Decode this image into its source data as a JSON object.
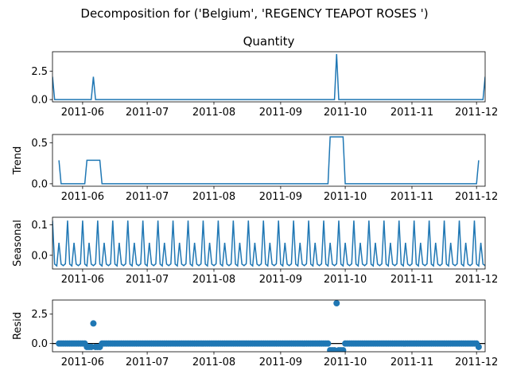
{
  "figure": {
    "title": "Decomposition for ('Belgium', 'REGENCY TEAPOT ROSES ')"
  },
  "colors": {
    "series": "#1f77b4",
    "axis": "#000000",
    "background": "#ffffff"
  },
  "chart_data": [
    {
      "type": "line",
      "title": "Quantity",
      "ylabel": "",
      "x_range": [
        "2011-05-18",
        "2011-12-05"
      ],
      "ylim": [
        -0.2,
        4.2
      ],
      "yticks": [
        0.0,
        2.5
      ],
      "ytick_labels": [
        "0.0",
        "2.5"
      ],
      "xtick_labels": [
        "2011-06",
        "2011-07",
        "2011-08",
        "2011-09",
        "2011-10",
        "2011-11",
        "2011-12"
      ],
      "grid": false,
      "points": [
        [
          "2011-05-18",
          2.0
        ],
        [
          "2011-05-19",
          0.0
        ],
        [
          "2011-06-05",
          0.0
        ],
        [
          "2011-06-06",
          2.0
        ],
        [
          "2011-06-07",
          0.0
        ],
        [
          "2011-09-26",
          0.0
        ],
        [
          "2011-09-27",
          4.0
        ],
        [
          "2011-09-28",
          0.0
        ],
        [
          "2011-12-04",
          0.0
        ],
        [
          "2011-12-05",
          2.0
        ]
      ]
    },
    {
      "type": "line",
      "title": "",
      "ylabel": "Trend",
      "x_range": [
        "2011-05-18",
        "2011-12-05"
      ],
      "ylim": [
        -0.03,
        0.6
      ],
      "yticks": [
        0.0,
        0.5
      ],
      "ytick_labels": [
        "0.0",
        "0.5"
      ],
      "xtick_labels": [
        "2011-06",
        "2011-07",
        "2011-08",
        "2011-09",
        "2011-10",
        "2011-11",
        "2011-12"
      ],
      "grid": false,
      "points": [
        [
          "2011-05-21",
          0.286
        ],
        [
          "2011-05-22",
          0.0
        ],
        [
          "2011-06-02",
          0.0
        ],
        [
          "2011-06-03",
          0.286
        ],
        [
          "2011-06-09",
          0.286
        ],
        [
          "2011-06-10",
          0.0
        ],
        [
          "2011-09-23",
          0.0
        ],
        [
          "2011-09-24",
          0.571
        ],
        [
          "2011-09-30",
          0.571
        ],
        [
          "2011-10-01",
          0.0
        ],
        [
          "2011-12-01",
          0.0
        ],
        [
          "2011-12-02",
          0.286
        ]
      ]
    },
    {
      "type": "line",
      "title": "",
      "ylabel": "Seasonal",
      "x_range": [
        "2011-05-18",
        "2011-12-05"
      ],
      "ylim": [
        -0.045,
        0.125
      ],
      "yticks": [
        0.0,
        0.1
      ],
      "ytick_labels": [
        "0.0",
        "0.1"
      ],
      "xtick_labels": [
        "2011-06",
        "2011-07",
        "2011-08",
        "2011-09",
        "2011-10",
        "2011-11",
        "2011-12"
      ],
      "grid": false,
      "period_days": 7,
      "pattern_start": "2011-05-18",
      "weekly_pattern": [
        0.114,
        -0.029,
        -0.035,
        0.041,
        -0.029,
        -0.034,
        -0.028
      ]
    },
    {
      "type": "scatter",
      "title": "",
      "ylabel": "Resid",
      "x_range": [
        "2011-05-18",
        "2011-12-05"
      ],
      "ylim": [
        -0.7,
        3.7
      ],
      "yticks": [
        0.0,
        2.5
      ],
      "ytick_labels": [
        "0.0",
        "2.5"
      ],
      "xtick_labels": [
        "2011-06",
        "2011-07",
        "2011-08",
        "2011-09",
        "2011-10",
        "2011-11",
        "2011-12"
      ],
      "grid": false,
      "baseline": 0.0,
      "resid_range": [
        "2011-05-21",
        "2011-12-02"
      ],
      "default_value": 0.0,
      "special_points": [
        [
          "2011-06-03",
          -0.29
        ],
        [
          "2011-06-04",
          -0.29
        ],
        [
          "2011-06-05",
          -0.29
        ],
        [
          "2011-06-06",
          1.71
        ],
        [
          "2011-06-07",
          -0.29
        ],
        [
          "2011-06-08",
          -0.29
        ],
        [
          "2011-06-09",
          -0.29
        ],
        [
          "2011-09-24",
          -0.57
        ],
        [
          "2011-09-25",
          -0.57
        ],
        [
          "2011-09-26",
          -0.57
        ],
        [
          "2011-09-27",
          3.43
        ],
        [
          "2011-09-28",
          -0.57
        ],
        [
          "2011-09-29",
          -0.57
        ],
        [
          "2011-09-30",
          -0.57
        ],
        [
          "2011-12-02",
          -0.29
        ]
      ]
    }
  ]
}
